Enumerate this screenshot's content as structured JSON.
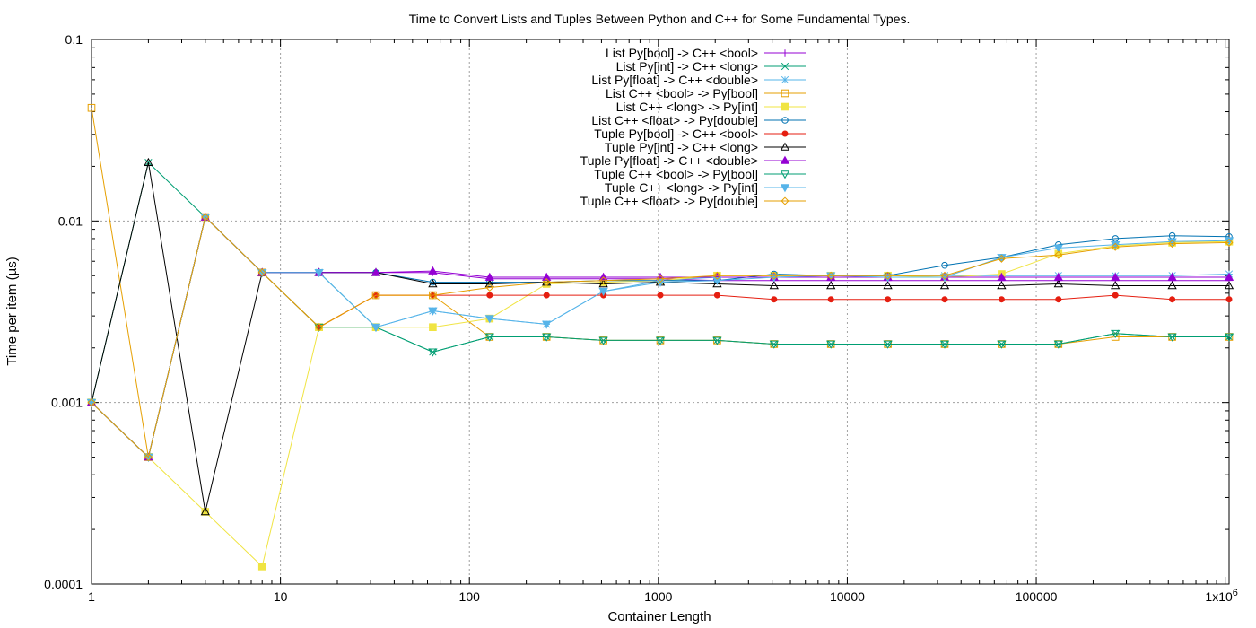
{
  "chart_data": {
    "type": "line",
    "title": "Time to Convert Lists and Tuples Between Python and C++ for Some Fundamental Types.",
    "xlabel": "Container Length",
    "ylabel": "Time per item (µs)",
    "x_scale": "log",
    "y_scale": "log",
    "xlim": [
      1,
      1048576
    ],
    "ylim": [
      0.0001,
      0.1
    ],
    "x_ticks": [
      {
        "value": 1,
        "label": "1"
      },
      {
        "value": 10,
        "label": "10"
      },
      {
        "value": 100,
        "label": "100"
      },
      {
        "value": 1000,
        "label": "1000"
      },
      {
        "value": 10000,
        "label": "10000"
      },
      {
        "value": 100000,
        "label": "100000"
      },
      {
        "value": 1000000,
        "label": "1x10",
        "superscript": "6"
      }
    ],
    "y_ticks": [
      {
        "value": 0.0001,
        "label": "0.0001"
      },
      {
        "value": 0.001,
        "label": "0.001"
      },
      {
        "value": 0.01,
        "label": "0.01"
      },
      {
        "value": 0.1,
        "label": "0.1"
      }
    ],
    "grid": true,
    "legend_position": "top-center",
    "x": [
      1,
      2,
      4,
      8,
      16,
      32,
      64,
      128,
      256,
      512,
      1024,
      2048,
      4096,
      8192,
      16384,
      32768,
      65536,
      131072,
      262144,
      524288,
      1048576
    ],
    "series": [
      {
        "name": "List Py[bool] -> C++ <bool>",
        "color": "#9400d3",
        "marker": "plus",
        "values": [
          0.001,
          0.0005,
          0.0105,
          0.0052,
          0.0052,
          0.0052,
          0.0052,
          0.0048,
          0.0048,
          0.0048,
          0.0048,
          0.0047,
          0.0047,
          0.0047,
          0.0047,
          0.0047,
          0.0047,
          0.0047,
          0.0047,
          0.0047,
          0.0047
        ]
      },
      {
        "name": "List Py[int] -> C++ <long>",
        "color": "#009e73",
        "marker": "cross",
        "values": [
          0.001,
          0.021,
          0.0105,
          0.0052,
          0.0052,
          0.0026,
          0.0019,
          0.0023,
          0.0023,
          0.0022,
          0.0022,
          0.0022,
          0.0021,
          0.0021,
          0.0021,
          0.0021,
          0.0021,
          0.0021,
          0.0024,
          0.0023,
          0.0023
        ]
      },
      {
        "name": "List Py[float] -> C++ <double>",
        "color": "#56b4e9",
        "marker": "star",
        "values": [
          0.001,
          0.0005,
          0.0105,
          0.0052,
          0.0052,
          0.0026,
          0.0032,
          0.0029,
          0.0027,
          0.0041,
          0.0047,
          0.0049,
          0.0049,
          0.005,
          0.005,
          0.005,
          0.005,
          0.005,
          0.005,
          0.005,
          0.0051
        ]
      },
      {
        "name": "List C++ <bool> -> Py[bool]",
        "color": "#e69f00",
        "marker": "square",
        "values": [
          0.042,
          0.0005,
          0.0105,
          0.0052,
          0.0026,
          0.0039,
          0.0039,
          0.0023,
          0.0023,
          0.0022,
          0.0022,
          0.0022,
          0.0021,
          0.0021,
          0.0021,
          0.0021,
          0.0021,
          0.0021,
          0.0023,
          0.0023,
          0.0023
        ]
      },
      {
        "name": "List C++ <long> -> Py[int]",
        "color": "#f0e442",
        "marker": "filled-square",
        "values": [
          0.001,
          0.0005,
          0.00025,
          0.000125,
          0.0026,
          0.0026,
          0.0026,
          0.0029,
          0.0045,
          0.0046,
          0.0047,
          0.005,
          0.005,
          0.005,
          0.005,
          0.0049,
          0.0051,
          0.0066,
          0.0073,
          0.0076,
          0.0077
        ]
      },
      {
        "name": "List C++ <float> -> Py[double]",
        "color": "#0072b2",
        "marker": "circle",
        "values": [
          0.001,
          0.0005,
          0.0105,
          0.0052,
          0.0052,
          0.0052,
          0.0046,
          0.0046,
          0.0046,
          0.0047,
          0.0047,
          0.0047,
          0.0051,
          0.005,
          0.005,
          0.0057,
          0.0063,
          0.0074,
          0.008,
          0.0083,
          0.0082
        ]
      },
      {
        "name": "Tuple Py[bool] -> C++ <bool>",
        "color": "#e51e10",
        "marker": "filled-circle",
        "values": [
          0.001,
          0.0005,
          0.0105,
          0.0052,
          0.0026,
          0.0039,
          0.0039,
          0.0039,
          0.0039,
          0.0039,
          0.0039,
          0.0039,
          0.0037,
          0.0037,
          0.0037,
          0.0037,
          0.0037,
          0.0037,
          0.0039,
          0.0037,
          0.0037
        ]
      },
      {
        "name": "Tuple Py[int] -> C++ <long>",
        "color": "#000000",
        "marker": "triangle",
        "values": [
          0.001,
          0.021,
          0.00025,
          0.0052,
          0.0052,
          0.0052,
          0.0045,
          0.0045,
          0.0046,
          0.0045,
          0.0046,
          0.0045,
          0.0044,
          0.0044,
          0.0044,
          0.0044,
          0.0044,
          0.0045,
          0.0044,
          0.0044,
          0.0044
        ]
      },
      {
        "name": "Tuple Py[float] -> C++ <double>",
        "color": "#9400d3",
        "marker": "filled-triangle",
        "values": [
          0.001,
          0.0005,
          0.0105,
          0.0052,
          0.0052,
          0.0052,
          0.0053,
          0.0049,
          0.0049,
          0.0049,
          0.0049,
          0.0049,
          0.0049,
          0.0049,
          0.0049,
          0.0049,
          0.0049,
          0.0049,
          0.0049,
          0.0049,
          0.0049
        ]
      },
      {
        "name": "Tuple C++ <bool> -> Py[bool]",
        "color": "#009e73",
        "marker": "triangle-down",
        "values": [
          0.001,
          0.0005,
          0.0105,
          0.0052,
          0.0026,
          0.0026,
          0.0019,
          0.0023,
          0.0023,
          0.0022,
          0.0022,
          0.0022,
          0.0021,
          0.0021,
          0.0021,
          0.0021,
          0.0021,
          0.0021,
          0.0024,
          0.0023,
          0.0023
        ]
      },
      {
        "name": "Tuple C++ <long> -> Py[int]",
        "color": "#56b4e9",
        "marker": "filled-triangle-down",
        "values": [
          0.001,
          0.0005,
          0.0105,
          0.0052,
          0.0052,
          0.0026,
          0.0032,
          0.0029,
          0.0027,
          0.0041,
          0.0046,
          0.0047,
          0.0049,
          0.005,
          0.0049,
          0.0049,
          0.0063,
          0.0071,
          0.0074,
          0.0077,
          0.0078
        ]
      },
      {
        "name": "Tuple C++ <float> -> Py[double]",
        "color": "#e69f00",
        "marker": "diamond",
        "values": [
          0.001,
          0.0005,
          0.0105,
          0.0052,
          0.0026,
          0.0039,
          0.0039,
          0.0043,
          0.0046,
          0.0047,
          0.0048,
          0.005,
          0.005,
          0.005,
          0.005,
          0.005,
          0.0062,
          0.0065,
          0.0072,
          0.0075,
          0.0076
        ]
      }
    ]
  }
}
